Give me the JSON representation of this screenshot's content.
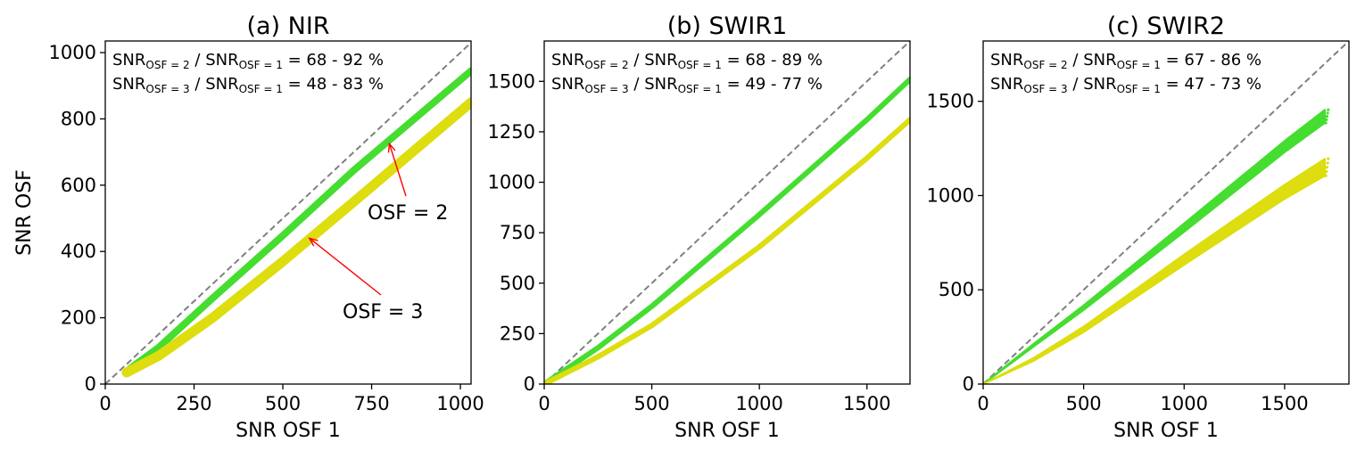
{
  "chart_data": [
    {
      "type": "scatter",
      "title": "(a) NIR",
      "xlabel": "SNR OSF 1",
      "ylabel": "SNR OSF",
      "xlim": [
        0,
        1030
      ],
      "ylim": [
        0,
        1035
      ],
      "xticks": [
        "0",
        "250",
        "500",
        "750",
        "1000"
      ],
      "yticks": [
        "0",
        "200",
        "400",
        "600",
        "800",
        "1000"
      ],
      "ratio_lines": [
        {
          "lead": "SNR",
          "sub1": "OSF = 2",
          "mid": " / SNR",
          "sub2": "OSF = 1",
          "tail": " = 68 - 92 %"
        },
        {
          "lead": "SNR",
          "sub1": "OSF = 3",
          "mid": " / SNR",
          "sub2": "OSF = 1",
          "tail": " = 48 - 83 %"
        }
      ],
      "callouts": [
        {
          "label": "OSF = 2",
          "x": 800,
          "y": 725
        },
        {
          "label": "OSF = 3",
          "x": 575,
          "y": 440
        }
      ],
      "reference_line": "y = x",
      "series": [
        {
          "color": "#45dd30",
          "width": 8,
          "points": [
            [
              70,
              47
            ],
            [
              150,
              110
            ],
            [
              300,
              257
            ],
            [
              500,
              448
            ],
            [
              700,
              645
            ],
            [
              1030,
              945
            ]
          ]
        },
        {
          "color": "#dddd10",
          "width": 11,
          "points": [
            [
              60,
              35
            ],
            [
              150,
              85
            ],
            [
              300,
              198
            ],
            [
              500,
              370
            ],
            [
              700,
              550
            ],
            [
              1030,
              850
            ]
          ]
        }
      ]
    },
    {
      "type": "scatter",
      "title": "(b) SWIR1",
      "xlabel": "SNR OSF 1",
      "ylabel": "",
      "xlim": [
        0,
        1700
      ],
      "ylim": [
        0,
        1700
      ],
      "xticks": [
        "0",
        "500",
        "1000",
        "1500"
      ],
      "yticks": [
        "0",
        "250",
        "500",
        "750",
        "1000",
        "1250",
        "1500"
      ],
      "ratio_lines": [
        {
          "lead": "SNR",
          "sub1": "OSF = 2",
          "mid": " / SNR",
          "sub2": "OSF = 1",
          "tail": " = 68 - 89 %"
        },
        {
          "lead": "SNR",
          "sub1": "OSF = 3",
          "mid": " / SNR",
          "sub2": "OSF = 1",
          "tail": " = 49 - 77 %"
        }
      ],
      "callouts": [],
      "reference_line": "y = x",
      "series": [
        {
          "color": "#45dd30",
          "width": 6,
          "points": [
            [
              0,
              0
            ],
            [
              250,
              180
            ],
            [
              500,
              385
            ],
            [
              1000,
              840
            ],
            [
              1500,
              1310
            ],
            [
              1700,
              1510
            ]
          ]
        },
        {
          "color": "#dddd10",
          "width": 6,
          "points": [
            [
              0,
              0
            ],
            [
              250,
              135
            ],
            [
              500,
              290
            ],
            [
              1000,
              680
            ],
            [
              1500,
              1120
            ],
            [
              1700,
              1310
            ]
          ]
        }
      ]
    },
    {
      "type": "scatter",
      "title": "(c) SWIR2",
      "xlabel": "SNR OSF 1",
      "ylabel": "",
      "xlim": [
        0,
        1820
      ],
      "ylim": [
        0,
        1820
      ],
      "xticks": [
        "0",
        "500",
        "1000",
        "1500"
      ],
      "yticks": [
        "0",
        "500",
        "1000",
        "1500"
      ],
      "ratio_lines": [
        {
          "lead": "SNR",
          "sub1": "OSF = 2",
          "mid": " / SNR",
          "sub2": "OSF = 1",
          "tail": " = 67 - 86 %"
        },
        {
          "lead": "SNR",
          "sub1": "OSF = 3",
          "mid": " / SNR",
          "sub2": "OSF = 1",
          "tail": " = 47 - 73 %"
        }
      ],
      "callouts": [],
      "reference_line": "y = x",
      "series": [
        {
          "color": "#45dd30",
          "points": [
            [
              0,
              0
            ],
            [
              250,
              205
            ],
            [
              500,
              405
            ],
            [
              1000,
              830
            ],
            [
              1500,
              1260
            ],
            [
              1700,
              1420
            ]
          ],
          "spread": [
            0,
            15,
            25,
            45,
            60,
            70
          ]
        },
        {
          "color": "#dddd10",
          "points": [
            [
              0,
              0
            ],
            [
              250,
              130
            ],
            [
              500,
              290
            ],
            [
              1000,
              660
            ],
            [
              1500,
              1020
            ],
            [
              1700,
              1150
            ]
          ],
          "spread": [
            0,
            15,
            30,
            55,
            75,
            90
          ]
        }
      ]
    }
  ]
}
